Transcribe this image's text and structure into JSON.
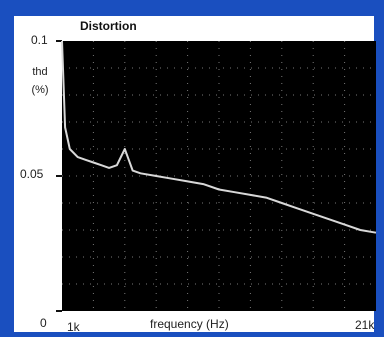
{
  "chart_data": {
    "type": "line",
    "title": "Distortion",
    "ylabel_lines": [
      "thd",
      "(%)"
    ],
    "xlabel": "frequency (Hz)",
    "x_tick_labels": [
      "1k",
      "21k"
    ],
    "y_tick_labels": [
      "0",
      "0.05",
      "0.1"
    ],
    "xlim": [
      1000,
      21000
    ],
    "ylim": [
      0,
      0.1
    ],
    "grid": true,
    "line_color": "#d8d8d8",
    "background_color": "#000000",
    "series": [
      {
        "x": [
          1000,
          1200,
          1500,
          2000,
          2500,
          3000,
          3500,
          4000,
          4500,
          5000,
          5500,
          6000,
          7000,
          8000,
          9000,
          10000,
          11000,
          12000,
          13000,
          14000,
          15000,
          16000,
          17000,
          18000,
          19000,
          20000,
          21000
        ],
        "y": [
          0.1,
          0.068,
          0.06,
          0.057,
          0.056,
          0.055,
          0.054,
          0.053,
          0.054,
          0.06,
          0.052,
          0.051,
          0.05,
          0.049,
          0.048,
          0.047,
          0.045,
          0.044,
          0.043,
          0.042,
          0.04,
          0.038,
          0.036,
          0.034,
          0.032,
          0.03,
          0.029
        ]
      }
    ]
  }
}
